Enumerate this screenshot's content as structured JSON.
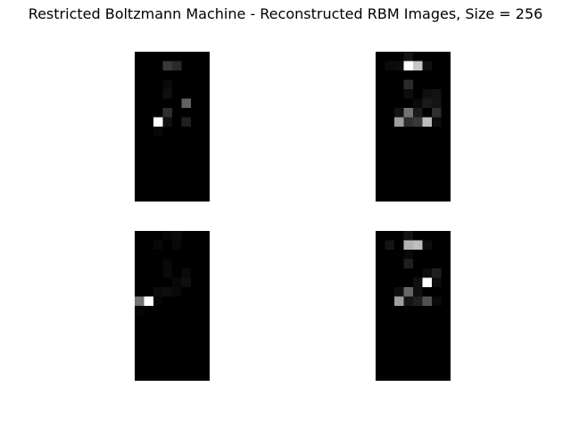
{
  "figure": {
    "title": "Restricted Boltzmann Machine - Reconstructed RBM Images, Size = 256"
  },
  "chart_data": {
    "type": "heatmap",
    "title": "Restricted Boltzmann Machine - Reconstructed RBM Images, Size = 256",
    "colormap": "gray",
    "value_range": [
      0,
      1
    ],
    "grid_rows": 16,
    "grid_cols": 8,
    "panels": [
      {
        "name": "",
        "cells": [
          {
            "row": 1,
            "col": 3,
            "value": 0.22
          },
          {
            "row": 1,
            "col": 4,
            "value": 0.16
          },
          {
            "row": 3,
            "col": 3,
            "value": 0.04
          },
          {
            "row": 4,
            "col": 3,
            "value": 0.06
          },
          {
            "row": 5,
            "col": 5,
            "value": 0.38
          },
          {
            "row": 6,
            "col": 3,
            "value": 0.18
          },
          {
            "row": 7,
            "col": 2,
            "value": 1.0
          },
          {
            "row": 7,
            "col": 3,
            "value": 0.06
          },
          {
            "row": 7,
            "col": 5,
            "value": 0.12
          },
          {
            "row": 8,
            "col": 2,
            "value": 0.03
          }
        ]
      },
      {
        "name": "",
        "cells": [
          {
            "row": 0,
            "col": 3,
            "value": 0.08
          },
          {
            "row": 1,
            "col": 1,
            "value": 0.04
          },
          {
            "row": 1,
            "col": 2,
            "value": 0.05
          },
          {
            "row": 1,
            "col": 3,
            "value": 1.0
          },
          {
            "row": 1,
            "col": 4,
            "value": 0.78
          },
          {
            "row": 1,
            "col": 5,
            "value": 0.06
          },
          {
            "row": 3,
            "col": 3,
            "value": 0.17
          },
          {
            "row": 4,
            "col": 3,
            "value": 0.05
          },
          {
            "row": 4,
            "col": 5,
            "value": 0.06
          },
          {
            "row": 4,
            "col": 6,
            "value": 0.07
          },
          {
            "row": 5,
            "col": 4,
            "value": 0.04
          },
          {
            "row": 5,
            "col": 5,
            "value": 0.1
          },
          {
            "row": 5,
            "col": 6,
            "value": 0.08
          },
          {
            "row": 6,
            "col": 2,
            "value": 0.07
          },
          {
            "row": 6,
            "col": 3,
            "value": 0.45
          },
          {
            "row": 6,
            "col": 4,
            "value": 0.1
          },
          {
            "row": 6,
            "col": 6,
            "value": 0.18
          },
          {
            "row": 7,
            "col": 2,
            "value": 0.62
          },
          {
            "row": 7,
            "col": 3,
            "value": 0.18
          },
          {
            "row": 7,
            "col": 4,
            "value": 0.22
          },
          {
            "row": 7,
            "col": 5,
            "value": 0.74
          },
          {
            "row": 7,
            "col": 6,
            "value": 0.05
          }
        ]
      },
      {
        "name": "",
        "cells": [
          {
            "row": 0,
            "col": 3,
            "value": 0.02
          },
          {
            "row": 0,
            "col": 4,
            "value": 0.04
          },
          {
            "row": 1,
            "col": 2,
            "value": 0.03
          },
          {
            "row": 1,
            "col": 4,
            "value": 0.03
          },
          {
            "row": 3,
            "col": 3,
            "value": 0.03
          },
          {
            "row": 4,
            "col": 3,
            "value": 0.04
          },
          {
            "row": 4,
            "col": 5,
            "value": 0.04
          },
          {
            "row": 5,
            "col": 4,
            "value": 0.03
          },
          {
            "row": 5,
            "col": 5,
            "value": 0.06
          },
          {
            "row": 6,
            "col": 2,
            "value": 0.04
          },
          {
            "row": 6,
            "col": 3,
            "value": 0.05
          },
          {
            "row": 6,
            "col": 4,
            "value": 0.03
          },
          {
            "row": 7,
            "col": 0,
            "value": 0.45
          },
          {
            "row": 7,
            "col": 1,
            "value": 1.0
          },
          {
            "row": 7,
            "col": 2,
            "value": 0.02
          },
          {
            "row": 8,
            "col": 0,
            "value": 0.02
          }
        ]
      },
      {
        "name": "",
        "cells": [
          {
            "row": 0,
            "col": 3,
            "value": 0.07
          },
          {
            "row": 1,
            "col": 1,
            "value": 0.08
          },
          {
            "row": 1,
            "col": 3,
            "value": 0.7
          },
          {
            "row": 1,
            "col": 4,
            "value": 0.75
          },
          {
            "row": 1,
            "col": 5,
            "value": 0.05
          },
          {
            "row": 2,
            "col": 3,
            "value": 0.03
          },
          {
            "row": 3,
            "col": 3,
            "value": 0.12
          },
          {
            "row": 4,
            "col": 5,
            "value": 0.05
          },
          {
            "row": 4,
            "col": 6,
            "value": 0.12
          },
          {
            "row": 5,
            "col": 4,
            "value": 0.06
          },
          {
            "row": 5,
            "col": 5,
            "value": 1.0
          },
          {
            "row": 5,
            "col": 6,
            "value": 0.05
          },
          {
            "row": 6,
            "col": 2,
            "value": 0.05
          },
          {
            "row": 6,
            "col": 3,
            "value": 0.4
          },
          {
            "row": 6,
            "col": 4,
            "value": 0.06
          },
          {
            "row": 7,
            "col": 2,
            "value": 0.62
          },
          {
            "row": 7,
            "col": 3,
            "value": 0.08
          },
          {
            "row": 7,
            "col": 4,
            "value": 0.12
          },
          {
            "row": 7,
            "col": 5,
            "value": 0.32
          },
          {
            "row": 7,
            "col": 6,
            "value": 0.04
          }
        ]
      }
    ]
  }
}
